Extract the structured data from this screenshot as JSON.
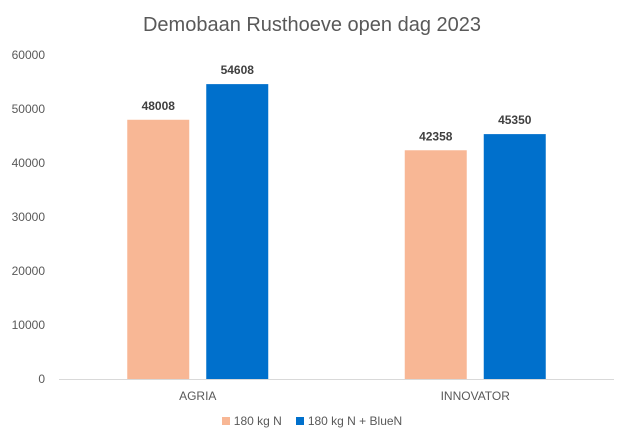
{
  "chart_data": {
    "type": "bar",
    "title": "Demobaan Rusthoeve open dag 2023",
    "categories": [
      "AGRIA",
      "INNOVATOR"
    ],
    "series": [
      {
        "name": "180 kg N",
        "values": [
          48008,
          42358
        ],
        "color": "#F8B795"
      },
      {
        "name": "180 kg N + BlueN",
        "values": [
          54608,
          45350
        ],
        "color": "#0070CC"
      }
    ],
    "ylim": [
      0,
      60000
    ],
    "yticks": [
      0,
      10000,
      20000,
      30000,
      40000,
      50000,
      60000
    ],
    "grid": false,
    "legend": "bottom",
    "data_labels": true
  }
}
